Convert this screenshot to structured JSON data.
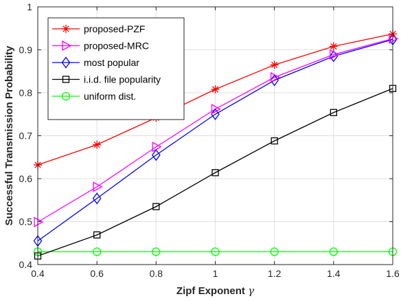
{
  "chart_data": {
    "type": "line",
    "title": "",
    "xlabel": "Zipf Exponent",
    "xlabel_symbol": "γ",
    "ylabel": "Successful Transmission Probability",
    "xlim": [
      0.4,
      1.6
    ],
    "ylim": [
      0.4,
      1.0
    ],
    "xticks": [
      "0.4",
      "0.6",
      "0.8",
      "1",
      "1.2",
      "1.4",
      "1.6"
    ],
    "yticks": [
      "0.4",
      "0.5",
      "0.6",
      "0.7",
      "0.8",
      "0.9",
      "1"
    ],
    "grid": true,
    "legend_position": "top-left",
    "x": [
      0.4,
      0.6,
      0.8,
      1.0,
      1.2,
      1.4,
      1.6
    ],
    "series": [
      {
        "name": "proposed-PZF",
        "color": "#ff0000",
        "marker": "asterisk",
        "values": [
          0.632,
          0.679,
          0.742,
          0.808,
          0.865,
          0.908,
          0.937
        ]
      },
      {
        "name": "proposed-MRC",
        "color": "#ff00ff",
        "marker": "triangle-right",
        "values": [
          0.499,
          0.581,
          0.674,
          0.762,
          0.836,
          0.889,
          0.926
        ]
      },
      {
        "name": "most popular",
        "color": "#0000ff",
        "marker": "diamond",
        "values": [
          0.455,
          0.554,
          0.655,
          0.75,
          0.829,
          0.885,
          0.924
        ]
      },
      {
        "name": "i.i.d. file popularity",
        "color": "#000000",
        "marker": "square",
        "values": [
          0.42,
          0.469,
          0.535,
          0.614,
          0.688,
          0.754,
          0.81
        ]
      },
      {
        "name": "uniform dist.",
        "color": "#00ff00",
        "marker": "circle",
        "values": [
          0.43,
          0.43,
          0.43,
          0.43,
          0.43,
          0.43,
          0.43
        ]
      }
    ]
  }
}
